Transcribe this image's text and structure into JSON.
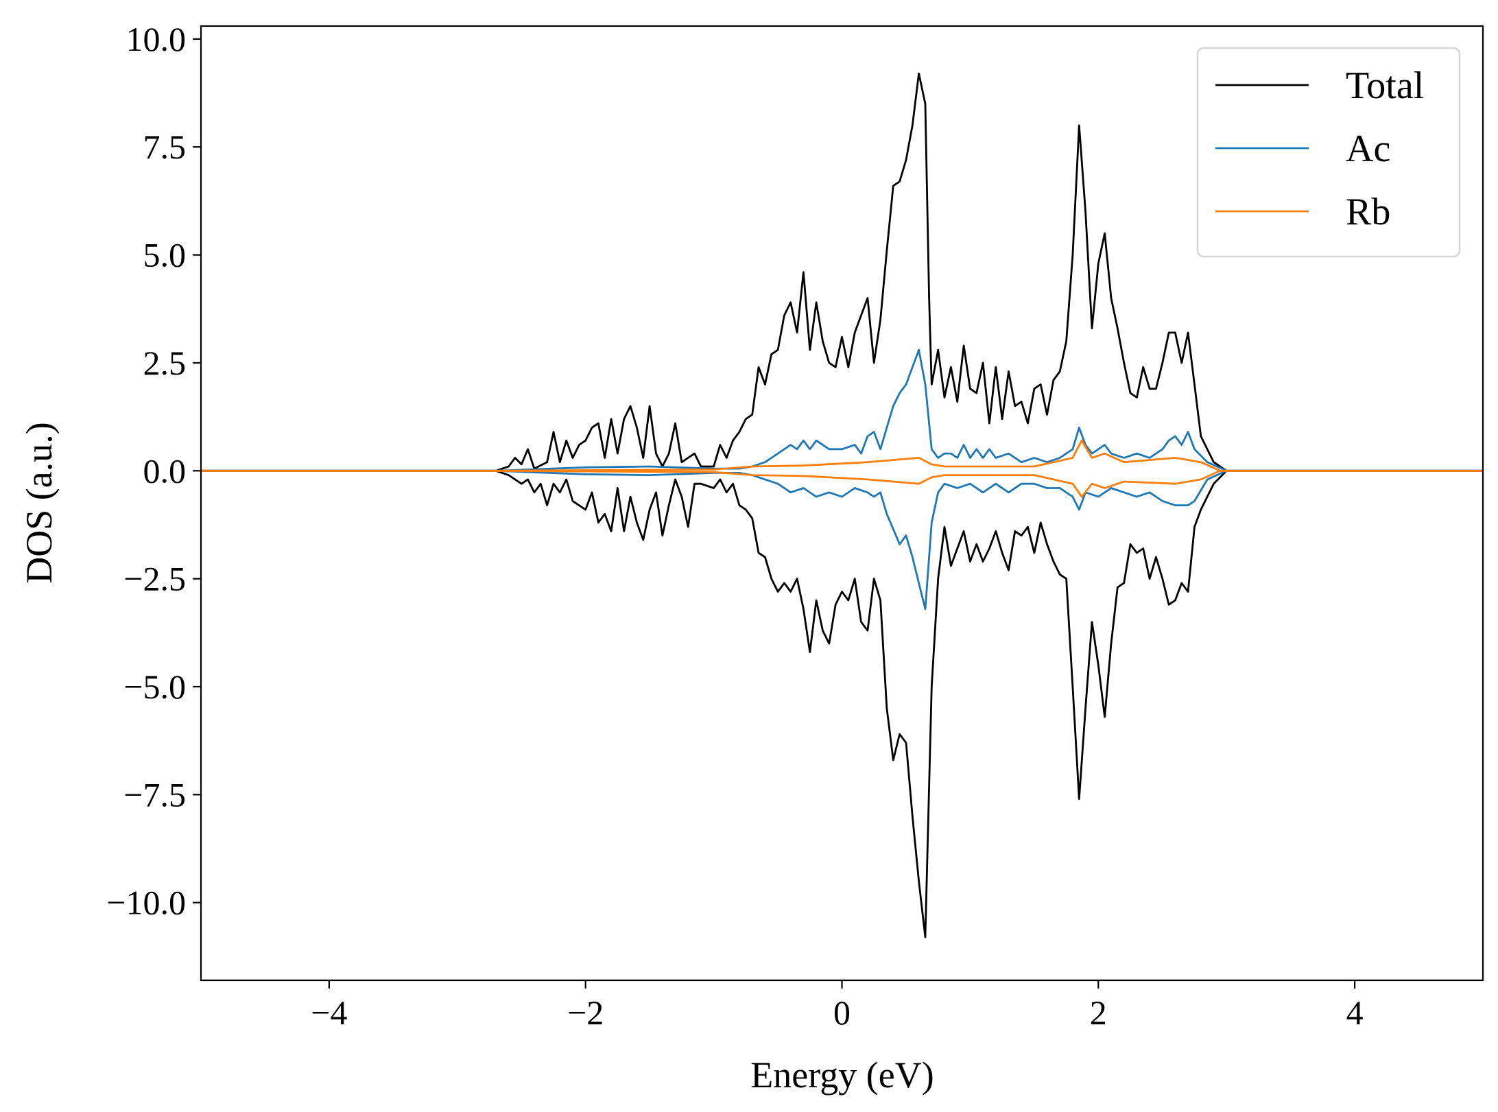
{
  "chart_data": {
    "type": "line",
    "title": "",
    "xlabel": "Energy (eV)",
    "ylabel": "DOS (a.u.)",
    "xlim": [
      -5,
      5
    ],
    "ylim": [
      -11.8,
      10.3
    ],
    "xticks": [
      -4,
      -2,
      0,
      2,
      4
    ],
    "xtick_labels": [
      "−4",
      "−2",
      "0",
      "2",
      "4"
    ],
    "yticks": [
      10,
      7.5,
      5,
      2.5,
      0,
      -2.5,
      -5,
      -7.5,
      -10
    ],
    "ytick_labels": [
      "10.0",
      "7.5",
      "5.0",
      "2.5",
      "0.0",
      "−2.5",
      "−5.0",
      "−7.5",
      "−10.0"
    ],
    "grid": false,
    "legend_position": "top-right",
    "series": [
      {
        "name": "Total",
        "color": "#000000",
        "spin": "up",
        "x": [
          -5,
          -2.7,
          -2.6,
          -2.55,
          -2.5,
          -2.45,
          -2.4,
          -2.3,
          -2.25,
          -2.2,
          -2.15,
          -2.1,
          -2.05,
          -2.0,
          -1.95,
          -1.9,
          -1.85,
          -1.8,
          -1.75,
          -1.7,
          -1.65,
          -1.6,
          -1.55,
          -1.5,
          -1.45,
          -1.4,
          -1.35,
          -1.3,
          -1.25,
          -1.2,
          -1.15,
          -1.1,
          -1.0,
          -0.95,
          -0.9,
          -0.85,
          -0.8,
          -0.75,
          -0.7,
          -0.65,
          -0.6,
          -0.55,
          -0.5,
          -0.45,
          -0.4,
          -0.35,
          -0.3,
          -0.25,
          -0.2,
          -0.15,
          -0.1,
          -0.05,
          0.0,
          0.05,
          0.1,
          0.15,
          0.2,
          0.25,
          0.3,
          0.35,
          0.4,
          0.45,
          0.5,
          0.55,
          0.6,
          0.65,
          0.68,
          0.7,
          0.75,
          0.8,
          0.85,
          0.9,
          0.95,
          1.0,
          1.05,
          1.1,
          1.15,
          1.2,
          1.25,
          1.3,
          1.35,
          1.4,
          1.45,
          1.5,
          1.55,
          1.6,
          1.65,
          1.7,
          1.75,
          1.8,
          1.85,
          1.9,
          1.95,
          2.0,
          2.05,
          2.1,
          2.15,
          2.2,
          2.25,
          2.3,
          2.35,
          2.4,
          2.45,
          2.5,
          2.55,
          2.6,
          2.65,
          2.7,
          2.75,
          2.8,
          2.9,
          3.0,
          5
        ],
        "y": [
          0,
          0,
          0.1,
          0.3,
          0.15,
          0.5,
          0.05,
          0.2,
          0.9,
          0.2,
          0.7,
          0.3,
          0.6,
          0.7,
          1.0,
          1.1,
          0.3,
          1.2,
          0.4,
          1.2,
          1.5,
          1.0,
          0.3,
          1.5,
          0.4,
          0.1,
          0.4,
          1.1,
          0.2,
          0.3,
          0.4,
          0.1,
          0.1,
          0.6,
          0.3,
          0.7,
          0.9,
          1.2,
          1.3,
          2.4,
          2.0,
          2.7,
          2.8,
          3.6,
          3.9,
          3.2,
          4.6,
          2.8,
          3.9,
          3.0,
          2.5,
          2.4,
          3.1,
          2.4,
          3.2,
          3.6,
          4.0,
          2.5,
          3.5,
          5.1,
          6.6,
          6.7,
          7.2,
          8.0,
          9.2,
          8.5,
          4.0,
          2.0,
          2.8,
          1.7,
          2.4,
          1.6,
          2.9,
          1.9,
          1.8,
          2.5,
          1.1,
          2.4,
          1.2,
          2.3,
          1.5,
          1.6,
          1.1,
          1.9,
          2.0,
          1.3,
          2.1,
          2.3,
          3.0,
          5.0,
          8.0,
          6.0,
          3.3,
          4.8,
          5.5,
          4.0,
          3.3,
          2.5,
          1.8,
          1.7,
          2.4,
          1.9,
          1.9,
          2.5,
          3.2,
          3.2,
          2.5,
          3.2,
          2.0,
          0.8,
          0.2,
          0,
          0
        ]
      },
      {
        "name": "Total",
        "color": "#000000",
        "spin": "down",
        "x": [
          -5,
          -2.7,
          -2.6,
          -2.5,
          -2.45,
          -2.4,
          -2.35,
          -2.3,
          -2.25,
          -2.2,
          -2.15,
          -2.1,
          -2.0,
          -1.95,
          -1.9,
          -1.85,
          -1.8,
          -1.75,
          -1.7,
          -1.65,
          -1.6,
          -1.55,
          -1.5,
          -1.45,
          -1.4,
          -1.35,
          -1.3,
          -1.25,
          -1.2,
          -1.15,
          -1.1,
          -1.0,
          -0.95,
          -0.9,
          -0.85,
          -0.8,
          -0.75,
          -0.7,
          -0.65,
          -0.6,
          -0.55,
          -0.5,
          -0.45,
          -0.4,
          -0.35,
          -0.3,
          -0.25,
          -0.2,
          -0.15,
          -0.1,
          -0.05,
          0.0,
          0.05,
          0.1,
          0.15,
          0.2,
          0.25,
          0.3,
          0.35,
          0.4,
          0.45,
          0.5,
          0.55,
          0.6,
          0.65,
          0.7,
          0.75,
          0.8,
          0.85,
          0.9,
          0.95,
          1.0,
          1.05,
          1.1,
          1.15,
          1.2,
          1.25,
          1.3,
          1.35,
          1.4,
          1.45,
          1.5,
          1.55,
          1.6,
          1.65,
          1.7,
          1.75,
          1.8,
          1.85,
          1.9,
          1.95,
          2.0,
          2.05,
          2.1,
          2.15,
          2.2,
          2.25,
          2.3,
          2.35,
          2.4,
          2.45,
          2.5,
          2.55,
          2.6,
          2.65,
          2.7,
          2.75,
          2.8,
          2.9,
          3.0,
          5
        ],
        "y": [
          0,
          0,
          -0.1,
          -0.3,
          -0.2,
          -0.5,
          -0.3,
          -0.8,
          -0.3,
          -0.5,
          -0.2,
          -0.7,
          -0.9,
          -0.5,
          -1.2,
          -1.0,
          -1.4,
          -0.4,
          -1.4,
          -0.6,
          -1.2,
          -1.6,
          -0.9,
          -0.5,
          -1.5,
          -0.8,
          -0.2,
          -0.6,
          -1.3,
          -0.3,
          -0.3,
          -0.4,
          -0.2,
          -0.5,
          -0.3,
          -0.8,
          -0.9,
          -1.1,
          -1.9,
          -2.0,
          -2.5,
          -2.8,
          -2.6,
          -2.8,
          -2.5,
          -3.2,
          -4.2,
          -3.0,
          -3.7,
          -4.0,
          -3.1,
          -2.8,
          -3.0,
          -2.5,
          -3.5,
          -3.7,
          -2.5,
          -3.0,
          -5.5,
          -6.7,
          -6.1,
          -6.3,
          -8.0,
          -9.5,
          -10.8,
          -5.0,
          -2.5,
          -1.3,
          -2.2,
          -1.8,
          -1.4,
          -2.1,
          -1.7,
          -2.1,
          -1.8,
          -1.4,
          -1.9,
          -2.3,
          -1.4,
          -1.5,
          -1.3,
          -1.9,
          -1.2,
          -1.7,
          -2.1,
          -2.4,
          -2.5,
          -5.0,
          -7.6,
          -5.5,
          -3.5,
          -4.5,
          -5.7,
          -4.0,
          -2.7,
          -2.6,
          -1.7,
          -1.9,
          -1.8,
          -2.5,
          -2.0,
          -2.5,
          -3.1,
          -3.0,
          -2.6,
          -2.8,
          -1.3,
          -0.9,
          -0.3,
          0,
          0
        ]
      },
      {
        "name": "Ac",
        "color": "#1f77b4",
        "spin": "up",
        "x": [
          -5,
          -2.7,
          -2.0,
          -1.5,
          -1.0,
          -0.8,
          -0.7,
          -0.6,
          -0.5,
          -0.45,
          -0.4,
          -0.35,
          -0.3,
          -0.25,
          -0.2,
          -0.1,
          0.0,
          0.1,
          0.15,
          0.2,
          0.25,
          0.3,
          0.35,
          0.4,
          0.45,
          0.5,
          0.55,
          0.6,
          0.65,
          0.7,
          0.75,
          0.8,
          0.85,
          0.9,
          0.95,
          1.0,
          1.05,
          1.1,
          1.15,
          1.2,
          1.3,
          1.4,
          1.5,
          1.6,
          1.7,
          1.8,
          1.85,
          1.9,
          1.95,
          2.0,
          2.05,
          2.1,
          2.2,
          2.3,
          2.4,
          2.5,
          2.55,
          2.6,
          2.65,
          2.7,
          2.75,
          2.85,
          3.0,
          5
        ],
        "y": [
          0,
          0,
          0.08,
          0.1,
          0.05,
          0.05,
          0.1,
          0.2,
          0.4,
          0.5,
          0.6,
          0.5,
          0.7,
          0.5,
          0.7,
          0.5,
          0.5,
          0.6,
          0.4,
          0.8,
          0.9,
          0.5,
          1.0,
          1.5,
          1.8,
          2.0,
          2.4,
          2.8,
          2.0,
          0.5,
          0.3,
          0.4,
          0.4,
          0.3,
          0.6,
          0.3,
          0.5,
          0.3,
          0.5,
          0.3,
          0.4,
          0.2,
          0.3,
          0.2,
          0.3,
          0.5,
          1.0,
          0.6,
          0.4,
          0.5,
          0.6,
          0.4,
          0.3,
          0.4,
          0.3,
          0.5,
          0.7,
          0.8,
          0.6,
          0.9,
          0.5,
          0.2,
          0,
          0
        ]
      },
      {
        "name": "Ac",
        "color": "#1f77b4",
        "spin": "down",
        "x": [
          -5,
          -2.7,
          -2.0,
          -1.5,
          -1.0,
          -0.8,
          -0.7,
          -0.6,
          -0.5,
          -0.4,
          -0.3,
          -0.2,
          -0.1,
          0.0,
          0.1,
          0.2,
          0.25,
          0.3,
          0.35,
          0.45,
          0.5,
          0.55,
          0.6,
          0.65,
          0.7,
          0.75,
          0.8,
          0.9,
          1.0,
          1.1,
          1.2,
          1.3,
          1.4,
          1.5,
          1.6,
          1.7,
          1.8,
          1.85,
          1.9,
          2.0,
          2.05,
          2.1,
          2.2,
          2.3,
          2.4,
          2.5,
          2.6,
          2.7,
          2.75,
          2.85,
          3.0,
          5
        ],
        "y": [
          0,
          0,
          -0.08,
          -0.1,
          -0.05,
          -0.05,
          -0.1,
          -0.2,
          -0.3,
          -0.5,
          -0.4,
          -0.6,
          -0.5,
          -0.6,
          -0.4,
          -0.5,
          -0.6,
          -0.5,
          -1.0,
          -1.7,
          -1.5,
          -2.0,
          -2.6,
          -3.2,
          -1.2,
          -0.5,
          -0.3,
          -0.4,
          -0.3,
          -0.5,
          -0.3,
          -0.5,
          -0.3,
          -0.3,
          -0.4,
          -0.4,
          -0.6,
          -0.9,
          -0.5,
          -0.6,
          -0.5,
          -0.4,
          -0.5,
          -0.6,
          -0.5,
          -0.7,
          -0.8,
          -0.8,
          -0.7,
          -0.2,
          0,
          0
        ]
      },
      {
        "name": "Rb",
        "color": "#ff7f0e",
        "spin": "up",
        "x": [
          -5,
          -2.7,
          -1.0,
          -0.7,
          -0.3,
          0.2,
          0.6,
          0.7,
          0.8,
          1.5,
          1.8,
          1.87,
          1.95,
          2.05,
          2.2,
          2.6,
          2.8,
          2.95,
          5
        ],
        "y": [
          0,
          0,
          0.03,
          0.1,
          0.12,
          0.2,
          0.3,
          0.15,
          0.1,
          0.1,
          0.3,
          0.7,
          0.3,
          0.4,
          0.2,
          0.3,
          0.2,
          0,
          0
        ]
      },
      {
        "name": "Rb",
        "color": "#ff7f0e",
        "spin": "down",
        "x": [
          -5,
          -2.7,
          -1.0,
          -0.7,
          -0.3,
          0.2,
          0.6,
          0.7,
          0.8,
          1.5,
          1.8,
          1.87,
          1.95,
          2.05,
          2.2,
          2.6,
          2.8,
          2.95,
          5
        ],
        "y": [
          0,
          0,
          -0.03,
          -0.1,
          -0.12,
          -0.2,
          -0.3,
          -0.15,
          -0.1,
          -0.1,
          -0.3,
          -0.6,
          -0.3,
          -0.4,
          -0.25,
          -0.3,
          -0.2,
          0,
          0
        ]
      }
    ],
    "legend": [
      {
        "label": "Total",
        "color": "#000000"
      },
      {
        "label": "Ac",
        "color": "#1f77b4"
      },
      {
        "label": "Rb",
        "color": "#ff7f0e"
      }
    ]
  }
}
